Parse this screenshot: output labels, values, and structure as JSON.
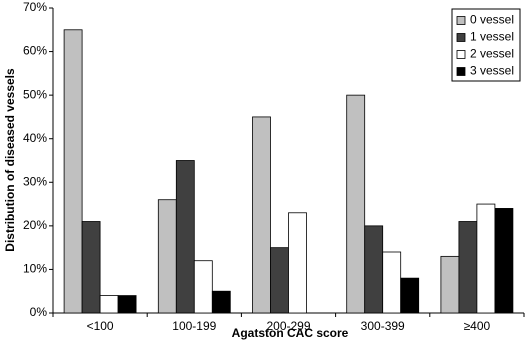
{
  "chart_data": {
    "type": "bar",
    "x_label": "Agatston CAC score",
    "y_label": "Distribution of diseased vessels",
    "categories": [
      "<100",
      "100-199",
      "200-299",
      "300-399",
      "≥400"
    ],
    "series": [
      {
        "name": "0 vessel",
        "color": "#c0c0c0",
        "values": [
          65,
          26,
          45,
          50,
          13
        ]
      },
      {
        "name": "1 vessel",
        "color": "#404040",
        "values": [
          21,
          35,
          15,
          20,
          21
        ]
      },
      {
        "name": "2 vessel",
        "color": "#ffffff",
        "values": [
          4,
          12,
          23,
          14,
          25
        ]
      },
      {
        "name": "3 vessel",
        "color": "#000000",
        "values": [
          4,
          5,
          0,
          8,
          24
        ]
      }
    ],
    "ylim": [
      0,
      70
    ],
    "yticks": [
      {
        "value": 0,
        "label": "0%"
      },
      {
        "value": 10,
        "label": "10%"
      },
      {
        "value": 20,
        "label": "20%"
      },
      {
        "value": 30,
        "label": "30%"
      },
      {
        "value": 40,
        "label": "40%"
      },
      {
        "value": 50,
        "label": "50%"
      },
      {
        "value": 60,
        "label": "60%"
      },
      {
        "value": 70,
        "label": "70%"
      }
    ],
    "grid": false,
    "legend": "top-right"
  }
}
